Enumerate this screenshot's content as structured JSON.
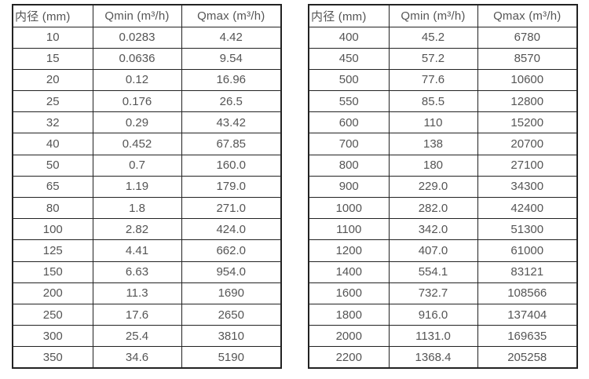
{
  "page": {
    "background": "#ffffff",
    "border_color": "#222222",
    "text_color": "#555555"
  },
  "tables": [
    {
      "name": "flow-table-small-diameters",
      "headers": [
        "内径 (mm)",
        "Qmin (m³/h)",
        "Qmax (m³/h)"
      ],
      "rows": [
        [
          "10",
          "0.0283",
          "4.42"
        ],
        [
          "15",
          "0.0636",
          "9.54"
        ],
        [
          "20",
          "0.12",
          "16.96"
        ],
        [
          "25",
          "0.176",
          "26.5"
        ],
        [
          "32",
          "0.29",
          "43.42"
        ],
        [
          "40",
          "0.452",
          "67.85"
        ],
        [
          "50",
          "0.7",
          "160.0"
        ],
        [
          "65",
          "1.19",
          "179.0"
        ],
        [
          "80",
          "1.8",
          "271.0"
        ],
        [
          "100",
          "2.82",
          "424.0"
        ],
        [
          "125",
          "4.41",
          "662.0"
        ],
        [
          "150",
          "6.63",
          "954.0"
        ],
        [
          "200",
          "11.3",
          "1690"
        ],
        [
          "250",
          "17.6",
          "2650"
        ],
        [
          "300",
          "25.4",
          "3810"
        ],
        [
          "350",
          "34.6",
          "5190"
        ]
      ]
    },
    {
      "name": "flow-table-large-diameters",
      "headers": [
        "内径 (mm)",
        "Qmin (m³/h)",
        "Qmax (m³/h)"
      ],
      "rows": [
        [
          "400",
          "45.2",
          "6780"
        ],
        [
          "450",
          "57.2",
          "8570"
        ],
        [
          "500",
          "77.6",
          "10600"
        ],
        [
          "550",
          "85.5",
          "12800"
        ],
        [
          "600",
          "110",
          "15200"
        ],
        [
          "700",
          "138",
          "20700"
        ],
        [
          "800",
          "180",
          "27100"
        ],
        [
          "900",
          "229.0",
          "34300"
        ],
        [
          "1000",
          "282.0",
          "42400"
        ],
        [
          "1100",
          "342.0",
          "51300"
        ],
        [
          "1200",
          "407.0",
          "61000"
        ],
        [
          "1400",
          "554.1",
          "83121"
        ],
        [
          "1600",
          "732.7",
          "108566"
        ],
        [
          "1800",
          "916.0",
          "137404"
        ],
        [
          "2000",
          "1131.0",
          "169635"
        ],
        [
          "2200",
          "1368.4",
          "205258"
        ]
      ]
    }
  ]
}
